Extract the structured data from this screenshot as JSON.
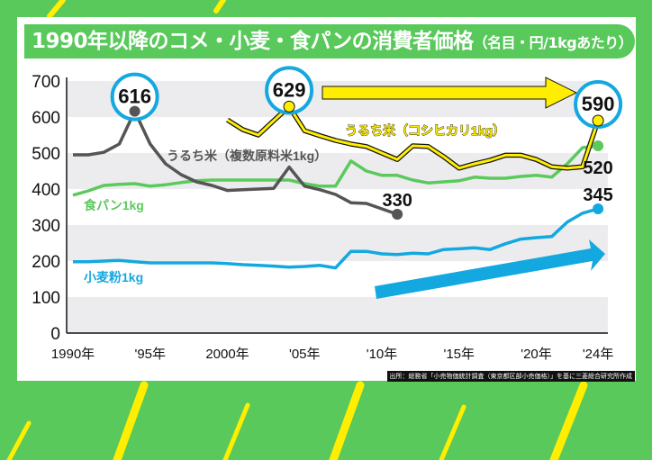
{
  "title": {
    "main": "1990年以降のコメ・小麦・食パンの消費者価格",
    "sub": "（名目・円/1kgあたり）"
  },
  "source": "出所：総務省「小売物価統計調査（東京都区部小売価格）」を基に三菱総合研究所作成",
  "colors": {
    "background": "#58c95a",
    "rice_blend": "#555555",
    "koshihikari": "#ffee00",
    "bread": "#5cc95c",
    "flour": "#14a8e0",
    "stripes": "#ffee00"
  },
  "chart_data": {
    "type": "line",
    "title": "1990年以降のコメ・小麦・食パンの消費者価格（名目・円/1kgあたり）",
    "ylim": [
      0,
      700
    ],
    "yticks": [
      "0",
      "100",
      "200",
      "300",
      "400",
      "500",
      "600",
      "700"
    ],
    "xlim": [
      1990,
      2024
    ],
    "xticks": [
      {
        "year": 1990,
        "label": "1990年"
      },
      {
        "year": 1995,
        "label": "'95年"
      },
      {
        "year": 2000,
        "label": "2000年"
      },
      {
        "year": 2005,
        "label": "'05年"
      },
      {
        "year": 2010,
        "label": "'10年"
      },
      {
        "year": 2015,
        "label": "'15年"
      },
      {
        "year": 2020,
        "label": "'20年"
      },
      {
        "year": 2024,
        "label": "'24年"
      }
    ],
    "grid": "alternating horizontal bands",
    "series": [
      {
        "name": "うるち米（複数原料米1kg）",
        "color": "#555555",
        "x": [
          1990,
          1991,
          1992,
          1993,
          1994,
          1995,
          1996,
          1997,
          1998,
          1999,
          2000,
          2001,
          2002,
          2003,
          2004,
          2005,
          2006,
          2007,
          2008,
          2009,
          2010,
          2011
        ],
        "y": [
          495,
          495,
          502,
          525,
          616,
          525,
          470,
          440,
          420,
          410,
          396,
          398,
          400,
          402,
          461,
          408,
          398,
          385,
          362,
          360,
          345,
          330
        ]
      },
      {
        "name": "うるち米（コシヒカリ1kg）",
        "color": "#ffee00",
        "x": [
          2000,
          2001,
          2002,
          2003,
          2004,
          2005,
          2006,
          2007,
          2008,
          2009,
          2010,
          2011,
          2012,
          2013,
          2014,
          2015,
          2016,
          2017,
          2018,
          2019,
          2020,
          2021,
          2022,
          2023,
          2024
        ],
        "y": [
          592,
          565,
          550,
          590,
          629,
          562,
          548,
          535,
          525,
          518,
          500,
          482,
          520,
          518,
          490,
          458,
          470,
          480,
          494,
          494,
          482,
          462,
          458,
          462,
          590
        ]
      },
      {
        "name": "食パン1kg",
        "color": "#5cc95c",
        "x": [
          1990,
          1991,
          1992,
          1993,
          1994,
          1995,
          1996,
          1997,
          1998,
          1999,
          2000,
          2001,
          2002,
          2003,
          2004,
          2005,
          2006,
          2007,
          2008,
          2009,
          2010,
          2011,
          2012,
          2013,
          2014,
          2015,
          2016,
          2017,
          2018,
          2019,
          2020,
          2021,
          2022,
          2023,
          2024
        ],
        "y": [
          383,
          395,
          410,
          413,
          415,
          408,
          412,
          418,
          423,
          425,
          425,
          425,
          425,
          425,
          425,
          415,
          408,
          408,
          478,
          450,
          438,
          438,
          425,
          417,
          420,
          423,
          433,
          430,
          430,
          435,
          438,
          433,
          470,
          515,
          520
        ]
      },
      {
        "name": "小麦粉1kg",
        "color": "#14a8e0",
        "x": [
          1990,
          1991,
          1992,
          1993,
          1994,
          1995,
          1996,
          1997,
          1998,
          1999,
          2000,
          2001,
          2002,
          2003,
          2004,
          2005,
          2006,
          2007,
          2008,
          2009,
          2010,
          2011,
          2012,
          2013,
          2014,
          2015,
          2016,
          2017,
          2018,
          2019,
          2020,
          2021,
          2022,
          2023,
          2024
        ],
        "y": [
          198,
          198,
          200,
          202,
          198,
          195,
          195,
          195,
          195,
          195,
          193,
          190,
          188,
          186,
          183,
          185,
          188,
          181,
          227,
          227,
          220,
          218,
          222,
          220,
          232,
          234,
          237,
          232,
          248,
          261,
          265,
          268,
          308,
          333,
          345
        ]
      }
    ],
    "annotations": [
      {
        "series": 0,
        "year": 1994,
        "label": "616",
        "circled": true
      },
      {
        "series": 1,
        "year": 2004,
        "label": "629",
        "circled": true
      },
      {
        "series": 1,
        "year": 2024,
        "label": "590",
        "circled": true
      },
      {
        "series": 0,
        "year": 2011,
        "label": "330",
        "circled": false
      },
      {
        "series": 2,
        "year": 2024,
        "label": "520",
        "circled": false
      },
      {
        "series": 3,
        "year": 2024,
        "label": "345",
        "circled": false
      }
    ]
  }
}
